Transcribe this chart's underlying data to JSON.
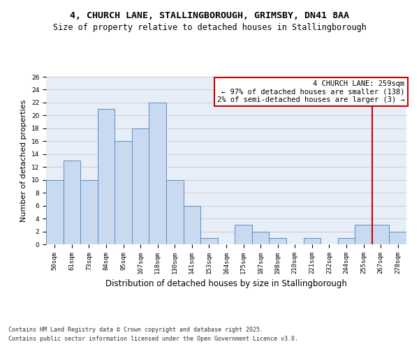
{
  "title1": "4, CHURCH LANE, STALLINGBOROUGH, GRIMSBY, DN41 8AA",
  "title2": "Size of property relative to detached houses in Stallingborough",
  "xlabel": "Distribution of detached houses by size in Stallingborough",
  "ylabel": "Number of detached properties",
  "categories": [
    "50sqm",
    "61sqm",
    "73sqm",
    "84sqm",
    "95sqm",
    "107sqm",
    "118sqm",
    "130sqm",
    "141sqm",
    "153sqm",
    "164sqm",
    "175sqm",
    "187sqm",
    "198sqm",
    "210sqm",
    "221sqm",
    "232sqm",
    "244sqm",
    "255sqm",
    "267sqm",
    "278sqm"
  ],
  "values": [
    10,
    13,
    10,
    21,
    16,
    18,
    22,
    10,
    6,
    1,
    0,
    3,
    2,
    1,
    0,
    1,
    0,
    1,
    3,
    3,
    2
  ],
  "bar_color": "#c8d9f0",
  "bar_edge_color": "#5b8ec5",
  "grid_color": "#cccccc",
  "background_color": "#e8eef8",
  "vline_color": "#cc0000",
  "annotation_title": "4 CHURCH LANE: 259sqm",
  "annotation_line1": "← 97% of detached houses are smaller (138)",
  "annotation_line2": "2% of semi-detached houses are larger (3) →",
  "annotation_box_color": "#cc0000",
  "ylim": [
    0,
    26
  ],
  "yticks": [
    0,
    2,
    4,
    6,
    8,
    10,
    12,
    14,
    16,
    18,
    20,
    22,
    24,
    26
  ],
  "footer1": "Contains HM Land Registry data © Crown copyright and database right 2025.",
  "footer2": "Contains public sector information licensed under the Open Government Licence v3.0.",
  "title_fontsize": 9.5,
  "subtitle_fontsize": 8.5,
  "axis_label_fontsize": 8,
  "tick_fontsize": 6.5,
  "annotation_fontsize": 7.5,
  "footer_fontsize": 6
}
